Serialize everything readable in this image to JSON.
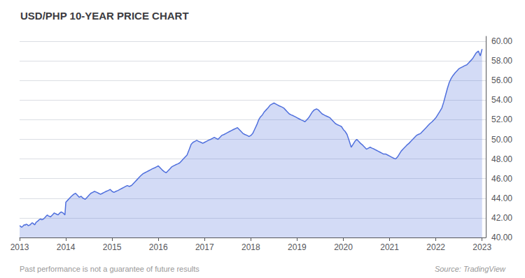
{
  "chart_data": {
    "type": "area",
    "title": "USD/PHP 10-YEAR PRICE CHART",
    "annotations": [
      "Past performance is not a guarantee of future results",
      "Source: TradingView"
    ],
    "xlim": [
      2013.0,
      2023.08
    ],
    "xticks": [
      2013,
      2014,
      2015,
      2016,
      2017,
      2018,
      2019,
      2020,
      2021,
      2022,
      2023
    ],
    "ylim": [
      40.0,
      60.5
    ],
    "yticks": [
      {
        "value": 40.0,
        "label": "40.00"
      },
      {
        "value": 42.0,
        "label": "42.00"
      },
      {
        "value": 44.0,
        "label": "44.00"
      },
      {
        "value": 46.0,
        "label": "46.00"
      },
      {
        "value": 48.0,
        "label": "48.00"
      },
      {
        "value": 50.0,
        "label": "50.00"
      },
      {
        "value": 52.0,
        "label": "52.00"
      },
      {
        "value": 54.0,
        "label": "54.00"
      },
      {
        "value": 56.0,
        "label": "56.00"
      },
      {
        "value": 58.0,
        "label": "58.00"
      },
      {
        "value": 60.0,
        "label": "60.00"
      }
    ],
    "grid": true,
    "x": [
      2013.0,
      2013.02,
      2013.04,
      2013.06,
      2013.08,
      2013.1,
      2013.12,
      2013.14,
      2013.17,
      2013.19,
      2013.21,
      2013.23,
      2013.25,
      2013.27,
      2013.29,
      2013.31,
      2013.33,
      2013.35,
      2013.37,
      2013.4,
      2013.42,
      2013.44,
      2013.46,
      2013.48,
      2013.5,
      2013.52,
      2013.54,
      2013.56,
      2013.58,
      2013.6,
      2013.62,
      2013.65,
      2013.67,
      2013.69,
      2013.71,
      2013.73,
      2013.75,
      2013.77,
      2013.79,
      2013.81,
      2013.83,
      2013.85,
      2013.87,
      2013.9,
      2013.92,
      2013.94,
      2013.96,
      2013.98,
      2014.0,
      2014.04,
      2014.08,
      2014.12,
      2014.17,
      2014.21,
      2014.25,
      2014.29,
      2014.33,
      2014.37,
      2014.42,
      2014.46,
      2014.5,
      2014.54,
      2014.58,
      2014.62,
      2014.67,
      2014.71,
      2014.75,
      2014.79,
      2014.83,
      2014.87,
      2014.92,
      2014.96,
      2015.0,
      2015.04,
      2015.08,
      2015.13,
      2015.17,
      2015.21,
      2015.25,
      2015.29,
      2015.33,
      2015.37,
      2015.42,
      2015.46,
      2015.5,
      2015.54,
      2015.58,
      2015.62,
      2015.67,
      2015.71,
      2015.75,
      2015.79,
      2015.83,
      2015.87,
      2015.92,
      2015.96,
      2016.0,
      2016.04,
      2016.08,
      2016.13,
      2016.17,
      2016.21,
      2016.25,
      2016.29,
      2016.33,
      2016.37,
      2016.42,
      2016.46,
      2016.5,
      2016.54,
      2016.58,
      2016.62,
      2016.67,
      2016.71,
      2016.75,
      2016.79,
      2016.83,
      2016.87,
      2016.92,
      2016.96,
      2017.0,
      2017.04,
      2017.08,
      2017.13,
      2017.17,
      2017.21,
      2017.25,
      2017.29,
      2017.33,
      2017.37,
      2017.42,
      2017.46,
      2017.5,
      2017.54,
      2017.58,
      2017.62,
      2017.67,
      2017.71,
      2017.75,
      2017.79,
      2017.83,
      2017.87,
      2017.92,
      2017.96,
      2018.0,
      2018.04,
      2018.08,
      2018.13,
      2018.17,
      2018.21,
      2018.25,
      2018.29,
      2018.33,
      2018.37,
      2018.42,
      2018.46,
      2018.5,
      2018.54,
      2018.58,
      2018.62,
      2018.67,
      2018.71,
      2018.75,
      2018.79,
      2018.83,
      2018.87,
      2018.92,
      2018.96,
      2019.0,
      2019.04,
      2019.08,
      2019.13,
      2019.17,
      2019.21,
      2019.25,
      2019.29,
      2019.33,
      2019.37,
      2019.42,
      2019.46,
      2019.5,
      2019.54,
      2019.58,
      2019.62,
      2019.67,
      2019.71,
      2019.75,
      2019.79,
      2019.83,
      2019.87,
      2019.92,
      2019.96,
      2020.0,
      2020.04,
      2020.08,
      2020.13,
      2020.17,
      2020.21,
      2020.25,
      2020.29,
      2020.33,
      2020.37,
      2020.42,
      2020.46,
      2020.5,
      2020.54,
      2020.58,
      2020.62,
      2020.67,
      2020.71,
      2020.75,
      2020.79,
      2020.83,
      2020.87,
      2020.92,
      2020.96,
      2021.0,
      2021.04,
      2021.08,
      2021.13,
      2021.17,
      2021.21,
      2021.25,
      2021.29,
      2021.33,
      2021.37,
      2021.42,
      2021.46,
      2021.5,
      2021.54,
      2021.58,
      2021.62,
      2021.67,
      2021.71,
      2021.75,
      2021.79,
      2021.83,
      2021.87,
      2021.92,
      2021.96,
      2022.0,
      2022.04,
      2022.08,
      2022.13,
      2022.17,
      2022.21,
      2022.25,
      2022.29,
      2022.33,
      2022.37,
      2022.42,
      2022.46,
      2022.5,
      2022.54,
      2022.58,
      2022.62,
      2022.67,
      2022.71,
      2022.75,
      2022.79,
      2022.83,
      2022.87,
      2022.92,
      2022.96,
      2023.0
    ],
    "values": [
      41.2,
      41.15,
      41.05,
      41.1,
      41.2,
      41.3,
      41.25,
      41.35,
      41.3,
      41.2,
      41.25,
      41.3,
      41.4,
      41.5,
      41.45,
      41.35,
      41.3,
      41.5,
      41.6,
      41.7,
      41.8,
      41.85,
      41.9,
      41.8,
      41.85,
      41.9,
      42.0,
      42.1,
      42.2,
      42.3,
      42.2,
      42.15,
      42.1,
      42.2,
      42.3,
      42.4,
      42.5,
      42.45,
      42.4,
      42.35,
      42.3,
      42.4,
      42.5,
      42.6,
      42.55,
      42.5,
      42.4,
      42.3,
      43.6,
      43.8,
      44.0,
      44.2,
      44.4,
      44.5,
      44.3,
      44.1,
      44.2,
      44.0,
      43.9,
      44.1,
      44.3,
      44.5,
      44.6,
      44.7,
      44.6,
      44.5,
      44.4,
      44.5,
      44.6,
      44.7,
      44.8,
      44.9,
      44.7,
      44.6,
      44.7,
      44.8,
      44.9,
      45.0,
      45.1,
      45.2,
      45.3,
      45.2,
      45.3,
      45.5,
      45.7,
      45.9,
      46.1,
      46.3,
      46.5,
      46.6,
      46.7,
      46.8,
      46.9,
      47.0,
      47.1,
      47.2,
      47.3,
      47.1,
      46.9,
      46.7,
      46.6,
      46.8,
      47.0,
      47.2,
      47.3,
      47.4,
      47.5,
      47.6,
      47.8,
      48.0,
      48.2,
      48.4,
      49.0,
      49.5,
      49.7,
      49.8,
      49.9,
      49.8,
      49.7,
      49.6,
      49.7,
      49.8,
      49.9,
      50.0,
      50.1,
      50.2,
      50.1,
      50.0,
      50.2,
      50.4,
      50.5,
      50.6,
      50.7,
      50.8,
      50.9,
      51.0,
      51.1,
      51.2,
      51.0,
      50.8,
      50.6,
      50.5,
      50.4,
      50.3,
      50.4,
      50.6,
      51.0,
      51.5,
      52.0,
      52.3,
      52.5,
      52.8,
      53.0,
      53.2,
      53.5,
      53.6,
      53.7,
      53.6,
      53.5,
      53.4,
      53.3,
      53.2,
      53.0,
      52.8,
      52.6,
      52.5,
      52.4,
      52.3,
      52.2,
      52.1,
      52.0,
      51.9,
      51.8,
      52.0,
      52.2,
      52.5,
      52.8,
      53.0,
      53.1,
      53.0,
      52.8,
      52.6,
      52.5,
      52.4,
      52.3,
      52.2,
      52.0,
      51.8,
      51.6,
      51.5,
      51.4,
      51.3,
      51.0,
      50.8,
      50.5,
      49.8,
      49.2,
      49.5,
      49.8,
      50.0,
      49.8,
      49.6,
      49.4,
      49.2,
      49.0,
      49.1,
      49.2,
      49.1,
      49.0,
      48.9,
      48.8,
      48.7,
      48.6,
      48.5,
      48.5,
      48.4,
      48.3,
      48.2,
      48.1,
      48.0,
      48.2,
      48.5,
      48.8,
      49.0,
      49.2,
      49.4,
      49.6,
      49.8,
      50.0,
      50.2,
      50.4,
      50.5,
      50.6,
      50.8,
      51.0,
      51.2,
      51.4,
      51.6,
      51.8,
      52.0,
      52.2,
      52.5,
      52.8,
      53.2,
      53.8,
      54.5,
      55.2,
      55.8,
      56.2,
      56.5,
      56.8,
      57.0,
      57.2,
      57.3,
      57.4,
      57.5,
      57.6,
      57.8,
      58.0,
      58.2,
      58.5,
      58.8,
      59.0,
      58.5,
      59.2
    ]
  }
}
